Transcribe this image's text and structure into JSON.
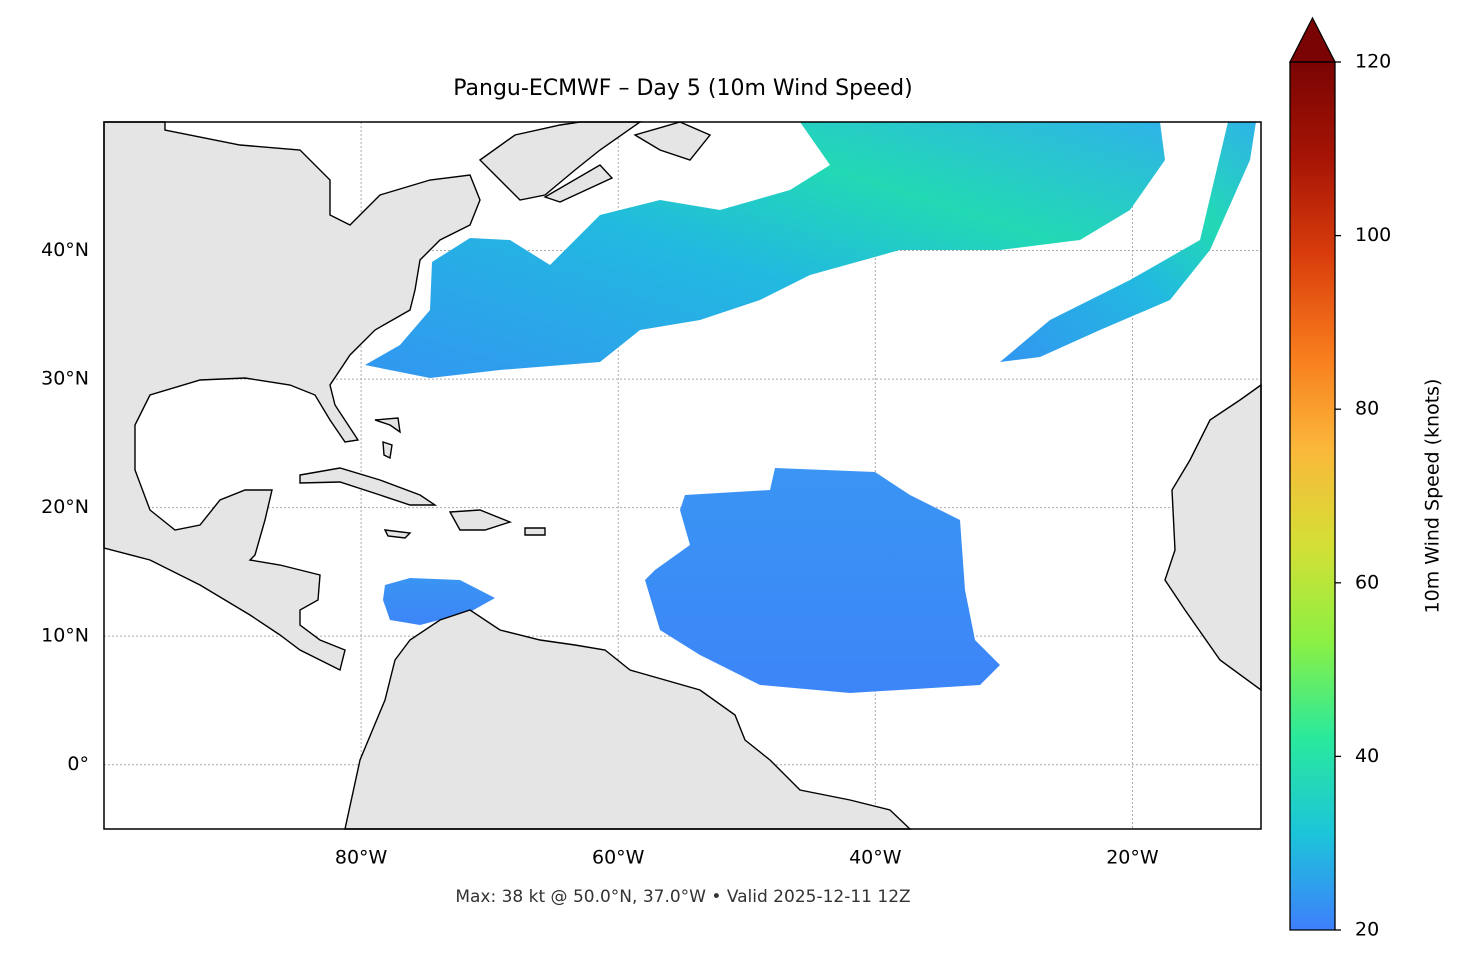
{
  "chart_data": {
    "type": "map",
    "title": "Pangu-ECMWF – Day 5 (10m Wind Speed)",
    "footnote": "Max: 38 kt @ 50.0°N, 37.0°W • Valid 2025-12-11 12Z",
    "xlim": [
      -100,
      -10
    ],
    "ylim": [
      -5,
      50
    ],
    "xticks": [
      {
        "value": -80,
        "label": "80°W"
      },
      {
        "value": -60,
        "label": "60°W"
      },
      {
        "value": -40,
        "label": "40°W"
      },
      {
        "value": -20,
        "label": "20°W"
      }
    ],
    "yticks": [
      {
        "value": 0,
        "label": "0°"
      },
      {
        "value": 10,
        "label": "10°N"
      },
      {
        "value": 20,
        "label": "20°N"
      },
      {
        "value": 30,
        "label": "30°N"
      },
      {
        "value": 40,
        "label": "40°N"
      }
    ],
    "grid": true,
    "colorbar": {
      "label": "10m Wind Speed (knots)",
      "lim": [
        20,
        120
      ],
      "ticks": [
        20,
        40,
        60,
        80,
        100,
        120
      ],
      "extend": "max",
      "colors": [
        "#3e7ffb",
        "#1cc5da",
        "#2ae99c",
        "#8cf043",
        "#d5df35",
        "#fbb73a",
        "#f77a1c",
        "#d93d0c",
        "#a61405",
        "#7a0403"
      ]
    }
  }
}
